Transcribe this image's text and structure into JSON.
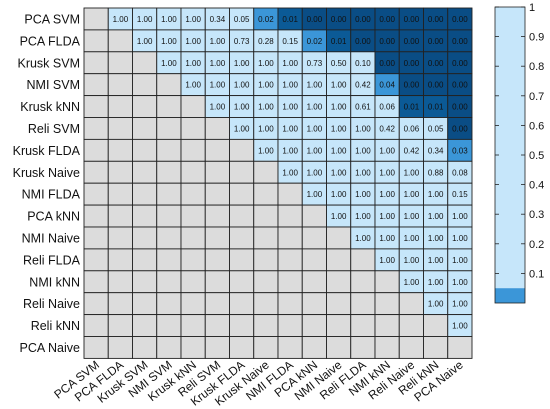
{
  "chart_data": {
    "type": "heatmap",
    "title": "",
    "xlabel": "",
    "ylabel": "",
    "labels": [
      "PCA SVM",
      "PCA FLDA",
      "Krusk SVM",
      "NMI SVM",
      "Krusk kNN",
      "Reli SVM",
      "Krusk FLDA",
      "Krusk Naive",
      "NMI FLDA",
      "PCA kNN",
      "NMI Naive",
      "Reli FLDA",
      "NMI kNN",
      "Reli Naive",
      "Reli kNN",
      "PCA Naive"
    ],
    "values": [
      [
        null,
        1.0,
        1.0,
        1.0,
        1.0,
        0.34,
        0.05,
        0.02,
        0.01,
        0.0,
        0.0,
        0.0,
        0.0,
        0.0,
        0.0,
        0.0
      ],
      [
        null,
        null,
        1.0,
        1.0,
        1.0,
        1.0,
        0.73,
        0.28,
        0.15,
        0.02,
        0.01,
        0.0,
        0.0,
        0.0,
        0.0,
        0.0
      ],
      [
        null,
        null,
        null,
        1.0,
        1.0,
        1.0,
        1.0,
        1.0,
        1.0,
        0.73,
        0.5,
        0.1,
        0.0,
        0.0,
        0.0,
        0.0
      ],
      [
        null,
        null,
        null,
        null,
        1.0,
        1.0,
        1.0,
        1.0,
        1.0,
        1.0,
        1.0,
        0.42,
        0.04,
        0.0,
        0.0,
        0.0
      ],
      [
        null,
        null,
        null,
        null,
        null,
        1.0,
        1.0,
        1.0,
        1.0,
        1.0,
        1.0,
        0.61,
        0.06,
        0.01,
        0.01,
        0.0
      ],
      [
        null,
        null,
        null,
        null,
        null,
        null,
        1.0,
        1.0,
        1.0,
        1.0,
        1.0,
        1.0,
        0.42,
        0.06,
        0.05,
        0.0
      ],
      [
        null,
        null,
        null,
        null,
        null,
        null,
        null,
        1.0,
        1.0,
        1.0,
        1.0,
        1.0,
        1.0,
        0.42,
        0.34,
        0.03
      ],
      [
        null,
        null,
        null,
        null,
        null,
        null,
        null,
        null,
        1.0,
        1.0,
        1.0,
        1.0,
        1.0,
        1.0,
        0.88,
        0.08
      ],
      [
        null,
        null,
        null,
        null,
        null,
        null,
        null,
        null,
        null,
        1.0,
        1.0,
        1.0,
        1.0,
        1.0,
        1.0,
        0.15
      ],
      [
        null,
        null,
        null,
        null,
        null,
        null,
        null,
        null,
        null,
        null,
        1.0,
        1.0,
        1.0,
        1.0,
        1.0,
        1.0
      ],
      [
        null,
        null,
        null,
        null,
        null,
        null,
        null,
        null,
        null,
        null,
        null,
        1.0,
        1.0,
        1.0,
        1.0,
        1.0
      ],
      [
        null,
        null,
        null,
        null,
        null,
        null,
        null,
        null,
        null,
        null,
        null,
        null,
        1.0,
        1.0,
        1.0,
        1.0
      ],
      [
        null,
        null,
        null,
        null,
        null,
        null,
        null,
        null,
        null,
        null,
        null,
        null,
        null,
        1.0,
        1.0,
        1.0
      ],
      [
        null,
        null,
        null,
        null,
        null,
        null,
        null,
        null,
        null,
        null,
        null,
        null,
        null,
        null,
        1.0,
        1.0
      ],
      [
        null,
        null,
        null,
        null,
        null,
        null,
        null,
        null,
        null,
        null,
        null,
        null,
        null,
        null,
        null,
        1.0
      ],
      [
        null,
        null,
        null,
        null,
        null,
        null,
        null,
        null,
        null,
        null,
        null,
        null,
        null,
        null,
        null,
        null
      ]
    ],
    "colorbar": {
      "range": [
        0,
        1
      ],
      "ticks": [
        "0.1",
        "0.2",
        "0.3",
        "0.4",
        "0.5",
        "0.6",
        "0.7",
        "0.8",
        "0.9",
        "1"
      ],
      "low_band_max": 0.05
    },
    "colors": {
      "empty": "#dcdcdc",
      "high": "#c6e6fa",
      "mid": "#3b96d8",
      "low": "#0b5a96",
      "lowest": "#0a4d85",
      "grid": "#222222"
    }
  }
}
